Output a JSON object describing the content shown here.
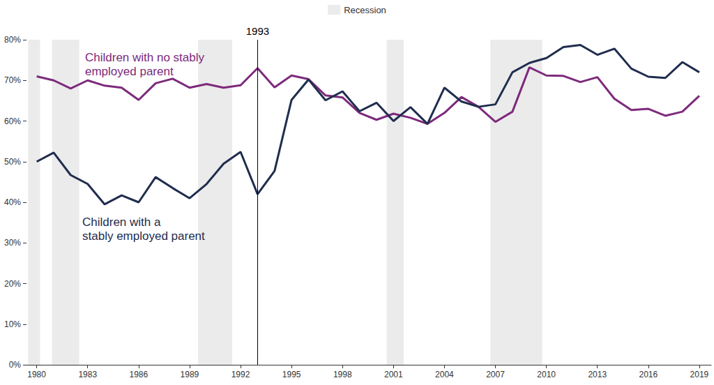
{
  "chart_data": {
    "type": "line",
    "x": [
      1980,
      1981,
      1982,
      1983,
      1984,
      1985,
      1986,
      1987,
      1988,
      1989,
      1990,
      1991,
      1992,
      1993,
      1994,
      1995,
      1996,
      1997,
      1998,
      1999,
      2000,
      2001,
      2002,
      2003,
      2004,
      2005,
      2006,
      2007,
      2008,
      2009,
      2010,
      2011,
      2012,
      2013,
      2014,
      2015,
      2016,
      2017,
      2018,
      2019
    ],
    "series": [
      {
        "name": "Children with no stably\nemployed parent",
        "color": "#7d2a7c",
        "values": [
          71,
          70,
          68,
          70,
          68.7,
          68.2,
          65.2,
          69.3,
          70.4,
          68.2,
          69.1,
          68.2,
          68.8,
          73,
          68.3,
          71.2,
          70.3,
          66.3,
          65.8,
          62,
          60.3,
          61.8,
          60.8,
          59.3,
          62,
          65.9,
          63.5,
          59.8,
          62.3,
          73.2,
          71.2,
          71.1,
          69.6,
          70.8,
          65.5,
          62.7,
          63,
          61.3,
          62.3,
          66.2
        ]
      },
      {
        "name": "Children with a\nstably employed parent",
        "color": "#1f2d4e",
        "values": [
          50,
          52.2,
          46.7,
          44.5,
          39.5,
          41.7,
          40,
          46.2,
          43.5,
          41,
          44.5,
          49.5,
          52.4,
          42,
          47.7,
          65.2,
          70.2,
          65.1,
          67.3,
          62.4,
          64.5,
          60,
          63.4,
          59.3,
          68.2,
          64.8,
          63.5,
          64.1,
          72,
          74.3,
          75.5,
          78.2,
          78.7,
          76.3,
          77.8,
          72.9,
          70.9,
          70.6,
          74.5,
          72
        ]
      }
    ],
    "xlim": [
      1979.4,
      2019.7
    ],
    "xticks": [
      1980,
      1983,
      1986,
      1989,
      1992,
      1995,
      1998,
      2001,
      2004,
      2007,
      2010,
      2013,
      2016,
      2019
    ],
    "ylim": [
      0,
      80
    ],
    "yticks": [
      {
        "value": 0,
        "label": "0%"
      },
      {
        "value": 10,
        "label": "10%"
      },
      {
        "value": 20,
        "label": "20%"
      },
      {
        "value": 30,
        "label": "30%"
      },
      {
        "value": 40,
        "label": "40%"
      },
      {
        "value": 50,
        "label": "50%"
      },
      {
        "value": 60,
        "label": "60%"
      },
      {
        "value": 70,
        "label": "70%"
      },
      {
        "value": 80,
        "label": "80%"
      }
    ],
    "grid": false,
    "legend": "top",
    "recessions": {
      "name": "Recession",
      "color": "#ebebeb",
      "ranges": [
        [
          1979.5,
          1980.2
        ],
        [
          1980.9,
          1982.5
        ],
        [
          1989.5,
          1991.5
        ],
        [
          2000.6,
          2001.6
        ],
        [
          2006.7,
          2009.75
        ]
      ]
    },
    "annotations": [
      {
        "x": 1993,
        "text": "1993"
      }
    ]
  }
}
